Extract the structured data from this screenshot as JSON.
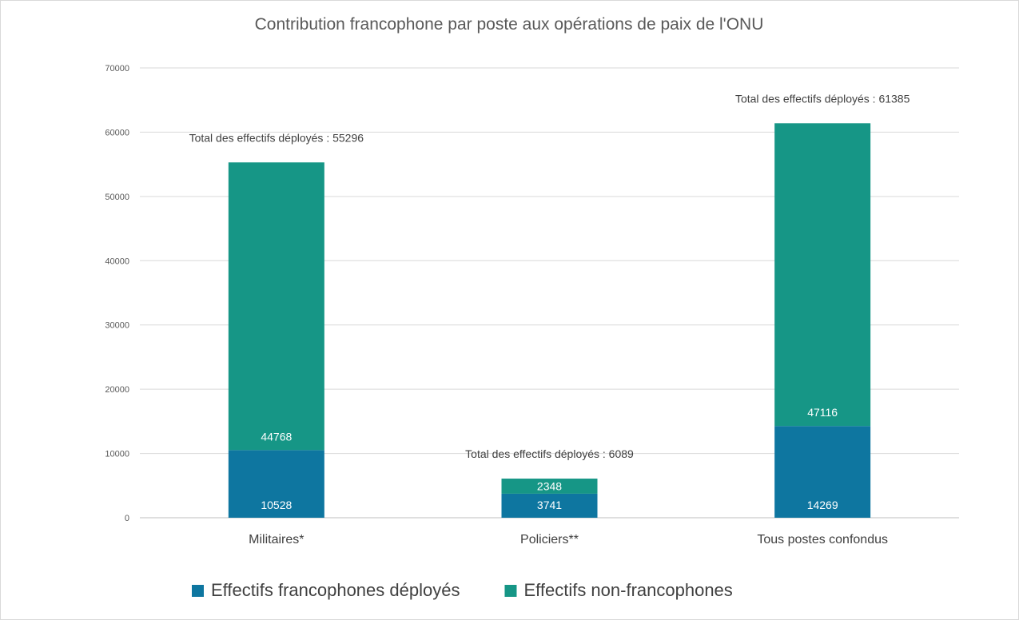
{
  "chart_data": {
    "type": "bar",
    "stacked": true,
    "title": "Contribution francophone par poste aux opérations de paix de l'ONU",
    "xlabel": "",
    "ylabel": "",
    "ylim": [
      0,
      70000
    ],
    "yticks": [
      0,
      10000,
      20000,
      30000,
      40000,
      50000,
      60000,
      70000
    ],
    "grid": true,
    "legend_position": "bottom",
    "categories": [
      "Militaires*",
      "Policiers**",
      "Tous postes confondus"
    ],
    "series": [
      {
        "name": "Effectifs francophones déployés",
        "color": "#0e76a0",
        "values": [
          10528,
          3741,
          14269
        ]
      },
      {
        "name": "Effectifs non-francophones",
        "color": "#169686",
        "values": [
          44768,
          2348,
          47116
        ]
      }
    ],
    "totals": [
      "Total des effectifs déployés : 55296",
      "Total des effectifs déployés : 6089",
      "Total des effectifs déployés : 61385"
    ]
  }
}
